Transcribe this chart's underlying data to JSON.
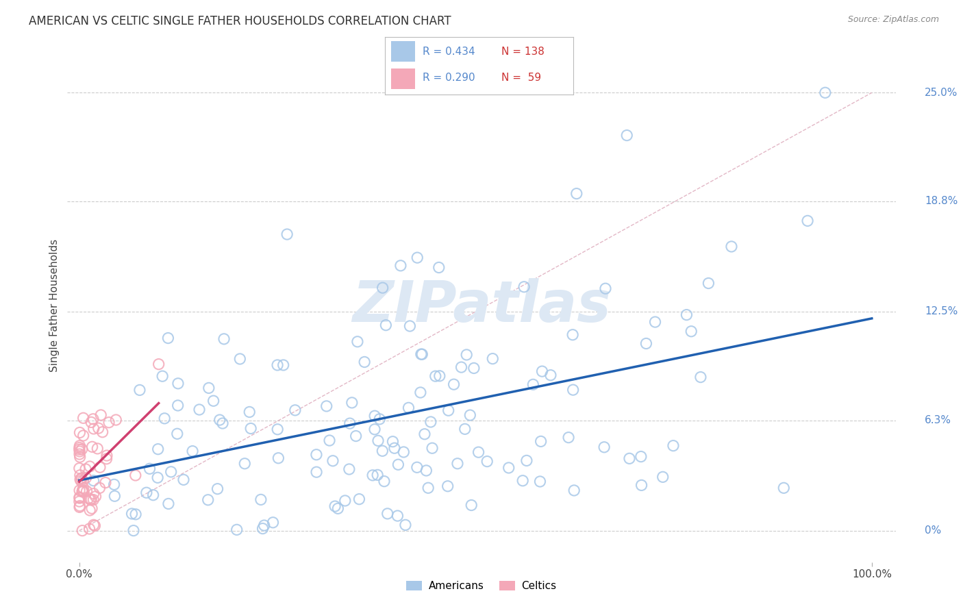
{
  "title": "AMERICAN VS CELTIC SINGLE FATHER HOUSEHOLDS CORRELATION CHART",
  "source": "Source: ZipAtlas.com",
  "ylabel": "Single Father Households",
  "color_american": "#a8c8e8",
  "color_celtic": "#f4a8b8",
  "color_trend_american": "#2060b0",
  "color_trend_celtic": "#d04070",
  "color_diagonal": "#e0b0c0",
  "color_grid": "#cccccc",
  "color_ytick": "#5588cc",
  "N_american": 138,
  "N_celtic": 59,
  "R_american": 0.434,
  "R_celtic": 0.29,
  "ytick_values": [
    0.0,
    0.063,
    0.125,
    0.188,
    0.25
  ],
  "ytick_labels": [
    "0%",
    "6.3%",
    "12.5%",
    "18.8%",
    "25.0%"
  ],
  "watermark": "ZIPatlas"
}
